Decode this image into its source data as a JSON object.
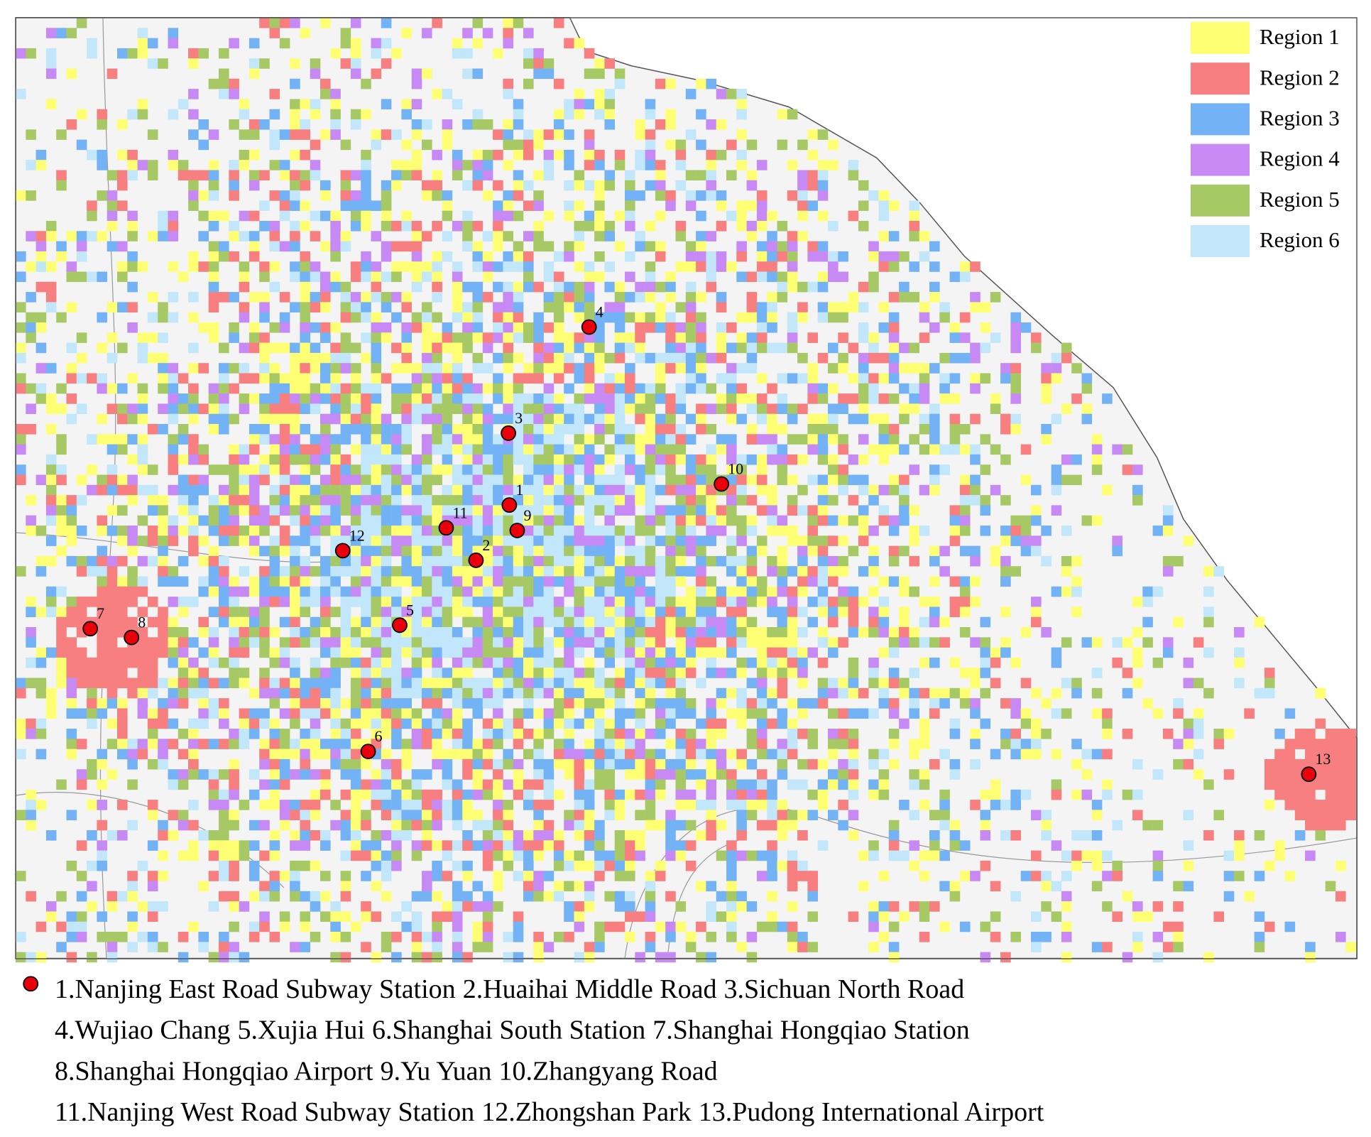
{
  "legend": [
    {
      "label": "Region 1",
      "color": "#ffff73"
    },
    {
      "label": "Region 2",
      "color": "#f77f7f"
    },
    {
      "label": "Region 3",
      "color": "#73b2f5"
    },
    {
      "label": "Region 4",
      "color": "#c78af5"
    },
    {
      "label": "Region 5",
      "color": "#a6c966"
    },
    {
      "label": "Region 6",
      "color": "#c2e6fa"
    }
  ],
  "stations": [
    {
      "number": "1",
      "caption": "1.Nanjing East Road Subway Station"
    },
    {
      "number": "2",
      "caption": "2.Huaihai Middle Road"
    },
    {
      "number": "3",
      "caption": "3.Sichuan North Road"
    },
    {
      "number": "4",
      "caption": "4.Wujiao Chang"
    },
    {
      "number": "5",
      "caption": "5.Xujia Hui"
    },
    {
      "number": "6",
      "caption": "6.Shanghai South Station"
    },
    {
      "number": "7",
      "caption": "7.Shanghai Hongqiao Station"
    },
    {
      "number": "8",
      "caption": "8.Shanghai Hongqiao Airport"
    },
    {
      "number": "9",
      "caption": "9.Yu Yuan"
    },
    {
      "number": "10",
      "caption": "10.Zhangyang Road"
    },
    {
      "number": "11",
      "caption": "11.Nanjing West Road Subway Station"
    },
    {
      "number": "12",
      "caption": "12.Zhongshan Park"
    },
    {
      "number": "13",
      "caption": "13.Pudong International Airport"
    }
  ]
}
